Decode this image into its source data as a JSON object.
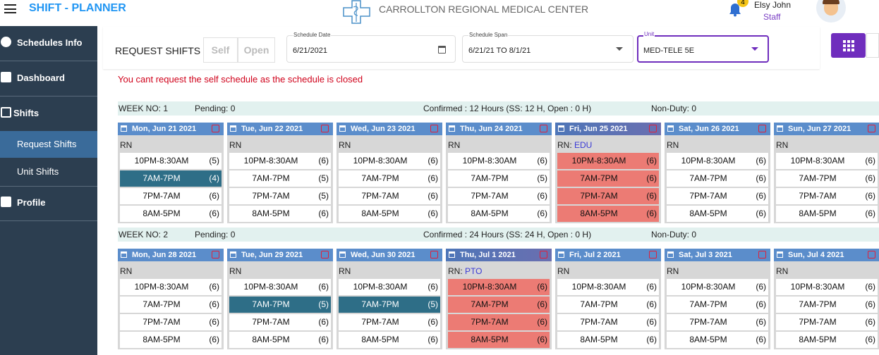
{
  "header": {
    "app_title": "SHIFT - PLANNER",
    "org_name": "CARROLLTON REGIONAL MEDICAL CENTER",
    "notification_count": "4",
    "user_name": "Elsy John",
    "user_role": "Staff"
  },
  "sidebar": {
    "items": [
      {
        "label": "Schedules Info"
      },
      {
        "label": "Dashboard"
      },
      {
        "label": "Shifts"
      },
      {
        "label": "Request Shifts",
        "sub": true,
        "active": true
      },
      {
        "label": "Unit Shifts",
        "sub": true
      },
      {
        "label": "Profile"
      }
    ]
  },
  "toolbar": {
    "title": "REQUEST SHIFTS",
    "buttons": [
      "Self",
      "Open"
    ],
    "fields": [
      {
        "label": "Schedule Date",
        "value": "6/21/2021"
      },
      {
        "label": "Schedule Span",
        "value": "6/21/21 TO 8/1/21"
      },
      {
        "label": "Unit",
        "value": "MED-TELE 5E"
      }
    ]
  },
  "message": "You cant request the self schedule as the schedule is closed",
  "weeks": [
    {
      "week": "WEEK NO: 1",
      "pending": "Pending: 0",
      "confirmed": "Confirmed : 12 Hours (SS: 12 H, Open : 0 H)",
      "non_duty": "Non-Duty: 0",
      "days": [
        {
          "date": "Mon, Jun 21 2021",
          "role": "RN",
          "selected": 1,
          "shifts": [
            {
              "time": "10PM-8:30AM",
              "count": "(5)"
            },
            {
              "time": "7AM-7PM",
              "count": "(4)"
            },
            {
              "time": "7PM-7AM",
              "count": "(6)"
            },
            {
              "time": "8AM-5PM",
              "count": "(6)"
            }
          ]
        },
        {
          "date": "Tue, Jun 22 2021",
          "role": "RN",
          "shifts": [
            {
              "time": "10PM-8:30AM",
              "count": "(6)"
            },
            {
              "time": "7AM-7PM",
              "count": "(5)"
            },
            {
              "time": "7PM-7AM",
              "count": "(5)"
            },
            {
              "time": "8AM-5PM",
              "count": "(6)"
            }
          ]
        },
        {
          "date": "Wed, Jun 23 2021",
          "role": "RN",
          "shifts": [
            {
              "time": "10PM-8:30AM",
              "count": "(6)"
            },
            {
              "time": "7AM-7PM",
              "count": "(6)"
            },
            {
              "time": "7PM-7AM",
              "count": "(6)"
            },
            {
              "time": "8AM-5PM",
              "count": "(6)"
            }
          ]
        },
        {
          "date": "Thu, Jun 24 2021",
          "role": "RN",
          "shifts": [
            {
              "time": "10PM-8:30AM",
              "count": "(6)"
            },
            {
              "time": "7AM-7PM",
              "count": "(5)"
            },
            {
              "time": "7PM-7AM",
              "count": "(6)"
            },
            {
              "time": "8AM-5PM",
              "count": "(6)"
            }
          ]
        },
        {
          "date": "Fri, Jun 25 2021",
          "role": "RN:",
          "tag": "EDU",
          "off": true,
          "shifts": [
            {
              "time": "10PM-8:30AM",
              "count": "(6)"
            },
            {
              "time": "7AM-7PM",
              "count": "(6)"
            },
            {
              "time": "7PM-7AM",
              "count": "(6)"
            },
            {
              "time": "8AM-5PM",
              "count": "(6)"
            }
          ]
        },
        {
          "date": "Sat, Jun 26 2021",
          "role": "RN",
          "shifts": [
            {
              "time": "10PM-8:30AM",
              "count": "(6)"
            },
            {
              "time": "7AM-7PM",
              "count": "(6)"
            },
            {
              "time": "7PM-7AM",
              "count": "(6)"
            },
            {
              "time": "8AM-5PM",
              "count": "(6)"
            }
          ]
        },
        {
          "date": "Sun, Jun 27 2021",
          "role": "RN",
          "shifts": [
            {
              "time": "10PM-8:30AM",
              "count": "(6)"
            },
            {
              "time": "7AM-7PM",
              "count": "(6)"
            },
            {
              "time": "7PM-7AM",
              "count": "(6)"
            },
            {
              "time": "8AM-5PM",
              "count": "(6)"
            }
          ]
        }
      ]
    },
    {
      "week": "WEEK NO: 2",
      "pending": "Pending: 0",
      "confirmed": "Confirmed : 24 Hours (SS: 24 H, Open : 0 H)",
      "non_duty": "Non-Duty: 0",
      "days": [
        {
          "date": "Mon, Jun 28 2021",
          "role": "RN",
          "shifts": [
            {
              "time": "10PM-8:30AM",
              "count": "(6)"
            },
            {
              "time": "7AM-7PM",
              "count": "(6)"
            },
            {
              "time": "7PM-7AM",
              "count": "(6)"
            },
            {
              "time": "8AM-5PM",
              "count": "(6)"
            }
          ]
        },
        {
          "date": "Tue, Jun 29 2021",
          "role": "RN",
          "selected": 1,
          "shifts": [
            {
              "time": "10PM-8:30AM",
              "count": "(6)"
            },
            {
              "time": "7AM-7PM",
              "count": "(5)"
            },
            {
              "time": "7PM-7AM",
              "count": "(6)"
            },
            {
              "time": "8AM-5PM",
              "count": "(6)"
            }
          ]
        },
        {
          "date": "Wed, Jun 30 2021",
          "role": "RN",
          "selected": 1,
          "shifts": [
            {
              "time": "10PM-8:30AM",
              "count": "(6)"
            },
            {
              "time": "7AM-7PM",
              "count": "(5)"
            },
            {
              "time": "7PM-7AM",
              "count": "(6)"
            },
            {
              "time": "8AM-5PM",
              "count": "(6)"
            }
          ]
        },
        {
          "date": "Thu, Jul 1 2021",
          "role": "RN:",
          "tag": "PTO",
          "off": true,
          "shifts": [
            {
              "time": "10PM-8:30AM",
              "count": "(6)"
            },
            {
              "time": "7AM-7PM",
              "count": "(6)"
            },
            {
              "time": "7PM-7AM",
              "count": "(6)"
            },
            {
              "time": "8AM-5PM",
              "count": "(6)"
            }
          ]
        },
        {
          "date": "Fri, Jul 2 2021",
          "role": "RN",
          "shifts": [
            {
              "time": "10PM-8:30AM",
              "count": "(6)"
            },
            {
              "time": "7AM-7PM",
              "count": "(6)"
            },
            {
              "time": "7PM-7AM",
              "count": "(6)"
            },
            {
              "time": "8AM-5PM",
              "count": "(6)"
            }
          ]
        },
        {
          "date": "Sat, Jul 3 2021",
          "role": "RN",
          "shifts": [
            {
              "time": "10PM-8:30AM",
              "count": "(6)"
            },
            {
              "time": "7AM-7PM",
              "count": "(6)"
            },
            {
              "time": "7PM-7AM",
              "count": "(6)"
            },
            {
              "time": "8AM-5PM",
              "count": "(6)"
            }
          ]
        },
        {
          "date": "Sun, Jul 4 2021",
          "role": "RN",
          "shifts": [
            {
              "time": "10PM-8:30AM",
              "count": "(6)"
            },
            {
              "time": "7AM-7PM",
              "count": "(6)"
            },
            {
              "time": "7PM-7AM",
              "count": "(6)"
            },
            {
              "time": "8AM-5PM",
              "count": "(6)"
            }
          ]
        }
      ]
    }
  ]
}
